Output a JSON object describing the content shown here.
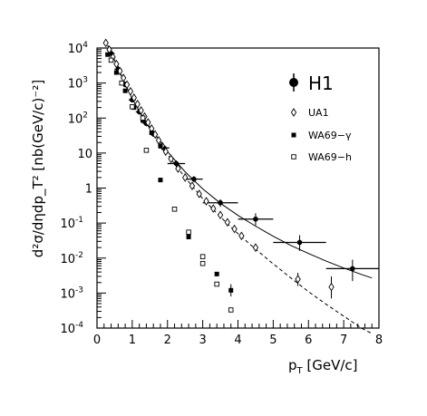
{
  "chart_data": {
    "type": "scatter",
    "xlabel": "p_T [GeV/c]",
    "xlabel_main": "p",
    "xlabel_sub": "T",
    "xlabel_tail": " [GeV/c]",
    "ylabel": "d²σ/dηdp_T² [nb(GeV/c)⁻²]",
    "xlim": [
      0,
      8
    ],
    "ylim": [
      0.0001,
      10000
    ],
    "yscale": "log",
    "legend_position": "top-right",
    "x_ticks": [
      "0",
      "1",
      "2",
      "3",
      "4",
      "5",
      "6",
      "7",
      "8"
    ],
    "y_ticks": [
      {
        "base": "10",
        "exp": "4",
        "value": 10000
      },
      {
        "base": "10",
        "exp": "3",
        "value": 1000
      },
      {
        "base": "10",
        "exp": "2",
        "value": 100
      },
      {
        "base": "10",
        "exp": "",
        "value": 10
      },
      {
        "base": "1",
        "exp": "",
        "value": 1
      },
      {
        "base": "10",
        "exp": "-1",
        "value": 0.1
      },
      {
        "base": "10",
        "exp": "-2",
        "value": 0.01
      },
      {
        "base": "10",
        "exp": "-3",
        "value": 0.001
      },
      {
        "base": "10",
        "exp": "-4",
        "value": 0.0001
      }
    ],
    "series": [
      {
        "name": "H1",
        "marker": "filled-circle-errorbars",
        "points": [
          {
            "x": 0.4,
            "y": 7000,
            "xerr": 0.1,
            "ylo": 5500,
            "yhi": 9000
          },
          {
            "x": 0.6,
            "y": 2500,
            "xerr": 0.1,
            "ylo": 2000,
            "yhi": 3100
          },
          {
            "x": 0.8,
            "y": 900,
            "xerr": 0.1,
            "ylo": 750,
            "yhi": 1100
          },
          {
            "x": 1.0,
            "y": 330,
            "xerr": 0.1,
            "ylo": 280,
            "yhi": 390
          },
          {
            "x": 1.2,
            "y": 150,
            "xerr": 0.1,
            "ylo": 125,
            "yhi": 180
          },
          {
            "x": 1.4,
            "y": 70,
            "xerr": 0.1,
            "ylo": 58,
            "yhi": 84
          },
          {
            "x": 1.6,
            "y": 35,
            "xerr": 0.1,
            "ylo": 29,
            "yhi": 42
          },
          {
            "x": 1.9,
            "y": 14,
            "xerr": 0.15,
            "ylo": 11.5,
            "yhi": 17
          },
          {
            "x": 2.25,
            "y": 5,
            "xerr": 0.25,
            "ylo": 4.0,
            "yhi": 6.2
          },
          {
            "x": 2.75,
            "y": 1.8,
            "xerr": 0.25,
            "ylo": 1.45,
            "yhi": 2.2
          },
          {
            "x": 3.5,
            "y": 0.38,
            "xerr": 0.5,
            "ylo": 0.29,
            "yhi": 0.48
          },
          {
            "x": 4.5,
            "y": 0.13,
            "xerr": 0.5,
            "ylo": 0.085,
            "yhi": 0.19
          },
          {
            "x": 5.75,
            "y": 0.028,
            "xerr": 0.75,
            "ylo": 0.016,
            "yhi": 0.045
          },
          {
            "x": 7.25,
            "y": 0.005,
            "xerr": 0.75,
            "ylo": 0.0022,
            "yhi": 0.009
          }
        ]
      },
      {
        "name": "UA1",
        "marker": "open-diamond",
        "points": [
          {
            "x": 0.25,
            "y": 14000
          },
          {
            "x": 0.35,
            "y": 9000
          },
          {
            "x": 0.45,
            "y": 5500
          },
          {
            "x": 0.55,
            "y": 3500
          },
          {
            "x": 0.65,
            "y": 2200
          },
          {
            "x": 0.75,
            "y": 1400
          },
          {
            "x": 0.85,
            "y": 900
          },
          {
            "x": 0.95,
            "y": 580
          },
          {
            "x": 1.05,
            "y": 380
          },
          {
            "x": 1.15,
            "y": 250
          },
          {
            "x": 1.25,
            "y": 165
          },
          {
            "x": 1.35,
            "y": 110
          },
          {
            "x": 1.45,
            "y": 75
          },
          {
            "x": 1.55,
            "y": 50
          },
          {
            "x": 1.65,
            "y": 34
          },
          {
            "x": 1.75,
            "y": 23
          },
          {
            "x": 1.85,
            "y": 16
          },
          {
            "x": 1.95,
            "y": 11
          },
          {
            "x": 2.1,
            "y": 6.8
          },
          {
            "x": 2.3,
            "y": 3.6
          },
          {
            "x": 2.5,
            "y": 2.0
          },
          {
            "x": 2.7,
            "y": 1.15
          },
          {
            "x": 2.9,
            "y": 0.68
          },
          {
            "x": 3.1,
            "y": 0.42
          },
          {
            "x": 3.3,
            "y": 0.26
          },
          {
            "x": 3.5,
            "y": 0.17
          },
          {
            "x": 3.7,
            "y": 0.105
          },
          {
            "x": 3.9,
            "y": 0.068
          },
          {
            "x": 4.1,
            "y": 0.043
          },
          {
            "x": 4.5,
            "y": 0.02
          },
          {
            "x": 5.7,
            "y": 0.0025,
            "ylo": 0.0016,
            "yhi": 0.0038
          },
          {
            "x": 6.65,
            "y": 0.0015,
            "ylo": 0.0007,
            "yhi": 0.003
          }
        ]
      },
      {
        "name": "WA69−γ",
        "marker": "filled-square",
        "points": [
          {
            "x": 0.3,
            "y": 6500
          },
          {
            "x": 0.55,
            "y": 2000
          },
          {
            "x": 0.8,
            "y": 600
          },
          {
            "x": 1.05,
            "y": 200
          },
          {
            "x": 1.3,
            "y": 85
          },
          {
            "x": 1.55,
            "y": 38
          },
          {
            "x": 1.8,
            "y": 16
          },
          {
            "x": 1.8,
            "y": 1.7
          },
          {
            "x": 2.6,
            "y": 0.04
          },
          {
            "x": 3.4,
            "y": 0.0035
          },
          {
            "x": 3.8,
            "y": 0.0012,
            "ylo": 0.0008,
            "yhi": 0.0018
          }
        ]
      },
      {
        "name": "WA69−h",
        "marker": "open-square",
        "points": [
          {
            "x": 0.4,
            "y": 4500
          },
          {
            "x": 0.7,
            "y": 1000
          },
          {
            "x": 1.0,
            "y": 210
          },
          {
            "x": 1.3,
            "y": 100
          },
          {
            "x": 1.4,
            "y": 12
          },
          {
            "x": 2.2,
            "y": 0.25
          },
          {
            "x": 2.6,
            "y": 0.055
          },
          {
            "x": 3.0,
            "y": 0.011
          },
          {
            "x": 3.0,
            "y": 0.007
          },
          {
            "x": 3.4,
            "y": 0.0018
          },
          {
            "x": 3.8,
            "y": 0.00033
          }
        ]
      }
    ],
    "curves": [
      {
        "style": "solid",
        "points": [
          [
            0.3,
            12000
          ],
          [
            0.5,
            4500
          ],
          [
            0.75,
            1200
          ],
          [
            1.0,
            350
          ],
          [
            1.25,
            130
          ],
          [
            1.5,
            55
          ],
          [
            1.75,
            25
          ],
          [
            2.0,
            11
          ],
          [
            2.5,
            2.9
          ],
          [
            3.0,
            0.95
          ],
          [
            3.5,
            0.37
          ],
          [
            4.0,
            0.165
          ],
          [
            4.5,
            0.082
          ],
          [
            5.0,
            0.042
          ],
          [
            5.5,
            0.023
          ],
          [
            6.0,
            0.0135
          ],
          [
            6.5,
            0.0082
          ],
          [
            7.0,
            0.0052
          ],
          [
            7.5,
            0.0034
          ],
          [
            7.8,
            0.0027
          ]
        ]
      },
      {
        "style": "dashed",
        "points": [
          [
            0.3,
            12000
          ],
          [
            0.5,
            4500
          ],
          [
            0.75,
            1200
          ],
          [
            1.0,
            350
          ],
          [
            1.25,
            125
          ],
          [
            1.5,
            50
          ],
          [
            1.75,
            21
          ],
          [
            2.0,
            9
          ],
          [
            2.5,
            2.0
          ],
          [
            3.0,
            0.5
          ],
          [
            3.5,
            0.15
          ],
          [
            4.0,
            0.05
          ],
          [
            4.5,
            0.018
          ],
          [
            5.0,
            0.0068
          ],
          [
            5.5,
            0.0027
          ],
          [
            6.0,
            0.0011
          ],
          [
            6.5,
            0.00048
          ],
          [
            7.0,
            0.00022
          ],
          [
            7.5,
            0.0001
          ],
          [
            7.8,
            7e-05
          ]
        ]
      }
    ]
  }
}
